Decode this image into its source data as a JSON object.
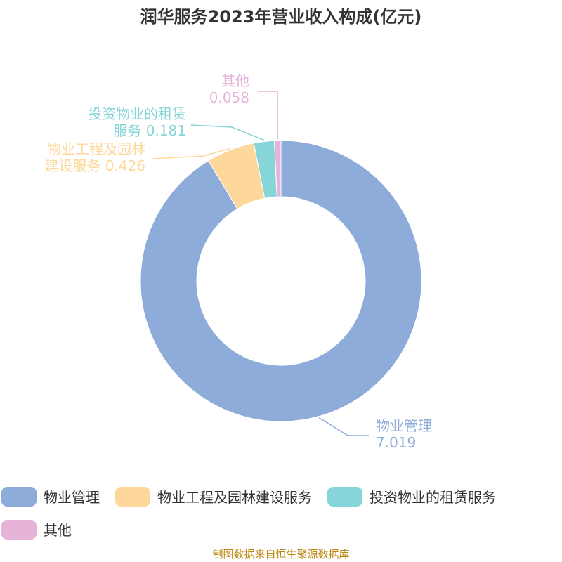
{
  "chart_data": {
    "type": "donut",
    "title": "润华服务2023年营业收入构成(亿元)",
    "categories": [
      "物业管理",
      "物业工程及园林建设服务",
      "投资物业的租赁服务",
      "其他"
    ],
    "values": [
      7.019,
      0.426,
      0.181,
      0.058
    ],
    "colors": [
      "#8eacd9",
      "#fdd89a",
      "#86d5d8",
      "#e6b4d9"
    ],
    "source": "制图数据来自恒生聚源数据库"
  }
}
